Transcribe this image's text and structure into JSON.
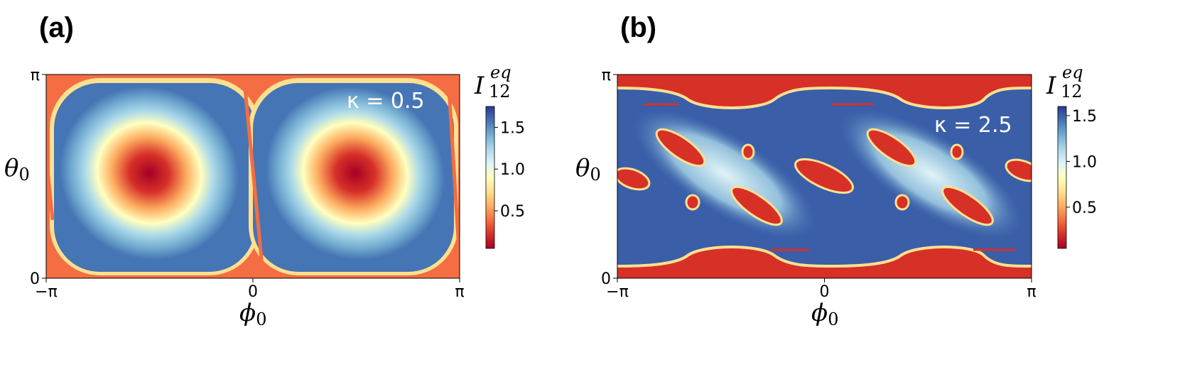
{
  "chart_data": [
    {
      "type": "heatmap",
      "panel_label": "(a)",
      "annotation": "κ = 0.5",
      "xlabel": "ϕ",
      "xlabel_sub": "0",
      "ylabel": "θ",
      "ylabel_sub": "0",
      "x_range": [
        -3.14159,
        3.14159
      ],
      "y_range": [
        0,
        3.14159
      ],
      "x_ticks": [
        -3.14159,
        0,
        3.14159
      ],
      "x_tick_labels": [
        "−π",
        "0",
        "π"
      ],
      "y_ticks": [
        0,
        3.14159
      ],
      "y_tick_labels": [
        "0",
        "π"
      ],
      "colorbar": {
        "title_main": "I",
        "title_sup": "eq",
        "title_sub": "12",
        "range": [
          0.05,
          1.75
        ],
        "ticks": [
          0.5,
          1.0,
          1.5
        ],
        "tick_labels": [
          "0.5",
          "1.0",
          "1.5"
        ],
        "colormap": "RdYlBu"
      }
    },
    {
      "type": "heatmap",
      "panel_label": "(b)",
      "annotation": "κ = 2.5",
      "xlabel": "ϕ",
      "xlabel_sub": "0",
      "ylabel": "θ",
      "ylabel_sub": "0",
      "x_range": [
        -3.14159,
        3.14159
      ],
      "y_range": [
        0,
        3.14159
      ],
      "x_ticks": [
        -3.14159,
        0,
        3.14159
      ],
      "x_tick_labels": [
        "−π",
        "0",
        "π"
      ],
      "y_ticks": [
        0,
        3.14159
      ],
      "y_tick_labels": [
        "0",
        "π"
      ],
      "colorbar": {
        "title_main": "I",
        "title_sup": "eq",
        "title_sub": "12",
        "range": [
          0.05,
          1.6
        ],
        "ticks": [
          0.5,
          1.0,
          1.5
        ],
        "tick_labels": [
          "0.5",
          "1.0",
          "1.5"
        ],
        "colormap": "RdYlBu"
      }
    }
  ]
}
